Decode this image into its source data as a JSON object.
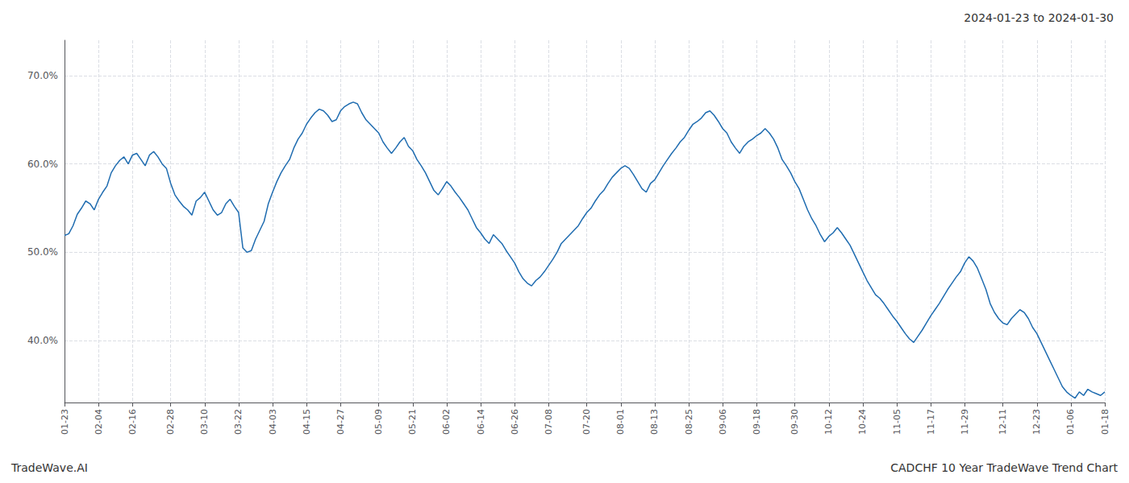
{
  "chart_data": {
    "type": "line",
    "title": "2024-01-23 to 2024-01-30",
    "annotations": [
      "TradeWave.AI",
      "CADCHF 10 Year TradeWave Trend Chart"
    ],
    "color": "#1f6cb0",
    "grid": true,
    "ylim": [
      0.33,
      0.74
    ],
    "yticks": [
      {
        "value": 0.4,
        "label": "40.0%"
      },
      {
        "value": 0.5,
        "label": "50.0%"
      },
      {
        "value": 0.6,
        "label": "60.0%"
      },
      {
        "value": 0.7,
        "label": "70.0%"
      }
    ],
    "categories": [
      "01-23",
      null,
      null,
      null,
      null,
      null,
      null,
      null,
      "02-04",
      null,
      null,
      null,
      null,
      null,
      null,
      null,
      "02-16",
      null,
      null,
      null,
      null,
      null,
      null,
      null,
      null,
      "02-28",
      null,
      null,
      null,
      null,
      null,
      null,
      null,
      "03-10",
      null,
      null,
      null,
      null,
      null,
      null,
      null,
      "03-22",
      null,
      null,
      null,
      null,
      null,
      null,
      null,
      "04-03",
      null,
      null,
      null,
      null,
      null,
      null,
      null,
      "04-15",
      null,
      null,
      null,
      null,
      null,
      null,
      null,
      "04-27",
      null,
      null,
      null,
      null,
      null,
      null,
      null,
      null,
      "05-09",
      null,
      null,
      null,
      null,
      null,
      null,
      null,
      "05-21",
      null,
      null,
      null,
      null,
      null,
      null,
      null,
      "06-02",
      null,
      null,
      null,
      null,
      null,
      null,
      null,
      "06-14",
      null,
      null,
      null,
      null,
      null,
      null,
      null,
      "06-26",
      null,
      null,
      null,
      null,
      null,
      null,
      null,
      "07-08",
      null,
      null,
      null,
      null,
      null,
      null,
      null,
      null,
      "07-20",
      null,
      null,
      null,
      null,
      null,
      null,
      null,
      "08-01",
      null,
      null,
      null,
      null,
      null,
      null,
      null,
      "08-13",
      null,
      null,
      null,
      null,
      null,
      null,
      null,
      "08-25",
      null,
      null,
      null,
      null,
      null,
      null,
      null,
      "09-06",
      null,
      null,
      null,
      null,
      null,
      null,
      null,
      "09-18",
      null,
      null,
      null,
      null,
      null,
      null,
      null,
      null,
      "09-30",
      null,
      null,
      null,
      null,
      null,
      null,
      null,
      "10-12",
      null,
      null,
      null,
      null,
      null,
      null,
      null,
      "10-24",
      null,
      null,
      null,
      null,
      null,
      null,
      null,
      "11-05",
      null,
      null,
      null,
      null,
      null,
      null,
      null,
      "11-17",
      null,
      null,
      null,
      null,
      null,
      null,
      null,
      "11-29",
      null,
      null,
      null,
      null,
      null,
      null,
      null,
      null,
      "12-11",
      null,
      null,
      null,
      null,
      null,
      null,
      null,
      "12-23",
      null,
      null,
      null,
      null,
      null,
      null,
      null,
      "01-06",
      null,
      null,
      null,
      null,
      null,
      null,
      null,
      "01-18"
    ],
    "values": [
      0.519,
      0.521,
      0.53,
      0.543,
      0.55,
      0.558,
      0.555,
      0.548,
      0.56,
      0.568,
      0.575,
      0.59,
      0.598,
      0.604,
      0.608,
      0.6,
      0.61,
      0.612,
      0.605,
      0.598,
      0.61,
      0.614,
      0.608,
      0.6,
      0.595,
      0.578,
      0.565,
      0.558,
      0.552,
      0.548,
      0.542,
      0.558,
      0.562,
      0.568,
      0.558,
      0.548,
      0.542,
      0.545,
      0.555,
      0.56,
      0.552,
      0.545,
      0.505,
      0.5,
      0.502,
      0.515,
      0.525,
      0.535,
      0.555,
      0.568,
      0.58,
      0.59,
      0.598,
      0.605,
      0.618,
      0.628,
      0.635,
      0.645,
      0.652,
      0.658,
      0.662,
      0.66,
      0.655,
      0.648,
      0.65,
      0.66,
      0.665,
      0.668,
      0.67,
      0.668,
      0.658,
      0.65,
      0.645,
      0.64,
      0.635,
      0.625,
      0.618,
      0.612,
      0.618,
      0.625,
      0.63,
      0.62,
      0.615,
      0.605,
      0.598,
      0.59,
      0.58,
      0.57,
      0.565,
      0.572,
      0.58,
      0.575,
      0.568,
      0.562,
      0.555,
      0.548,
      0.538,
      0.528,
      0.522,
      0.515,
      0.51,
      0.52,
      0.515,
      0.51,
      0.502,
      0.495,
      0.488,
      0.478,
      0.47,
      0.465,
      0.462,
      0.468,
      0.472,
      0.478,
      0.485,
      0.492,
      0.5,
      0.51,
      0.515,
      0.52,
      0.525,
      0.53,
      0.538,
      0.545,
      0.55,
      0.558,
      0.565,
      0.57,
      0.578,
      0.585,
      0.59,
      0.595,
      0.598,
      0.595,
      0.588,
      0.58,
      0.572,
      0.568,
      0.578,
      0.582,
      0.59,
      0.598,
      0.605,
      0.612,
      0.618,
      0.625,
      0.63,
      0.638,
      0.645,
      0.648,
      0.652,
      0.658,
      0.66,
      0.655,
      0.648,
      0.64,
      0.635,
      0.625,
      0.618,
      0.612,
      0.62,
      0.625,
      0.628,
      0.632,
      0.635,
      0.64,
      0.635,
      0.628,
      0.618,
      0.605,
      0.598,
      0.59,
      0.58,
      0.572,
      0.56,
      0.548,
      0.538,
      0.53,
      0.52,
      0.512,
      0.518,
      0.522,
      0.528,
      0.522,
      0.515,
      0.508,
      0.498,
      0.488,
      0.478,
      0.468,
      0.46,
      0.452,
      0.448,
      0.442,
      0.435,
      0.428,
      0.422,
      0.415,
      0.408,
      0.402,
      0.398,
      0.405,
      0.412,
      0.42,
      0.428,
      0.435,
      0.442,
      0.45,
      0.458,
      0.465,
      0.472,
      0.478,
      0.488,
      0.495,
      0.49,
      0.482,
      0.47,
      0.458,
      0.442,
      0.432,
      0.425,
      0.42,
      0.418,
      0.425,
      0.43,
      0.435,
      0.432,
      0.425,
      0.415,
      0.408,
      0.398,
      0.388,
      0.378,
      0.368,
      0.358,
      0.348,
      0.342,
      0.338,
      0.335,
      0.342,
      0.338,
      0.345,
      0.342,
      0.34,
      0.338,
      0.342
    ]
  }
}
